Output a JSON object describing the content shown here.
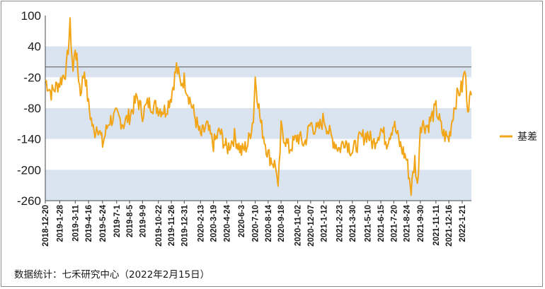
{
  "source_note": "数据统计：七禾研究中心（2022年2月15日）",
  "chart_data": {
    "type": "line",
    "title": "",
    "xlabel": "",
    "ylabel": "",
    "ylim": [
      -260,
      100
    ],
    "yticks": [
      100,
      40,
      -20,
      -80,
      -140,
      -200,
      -260
    ],
    "reference_line": 0,
    "grid": "alternating horizontal bands",
    "band_color": "#d9e4f0",
    "series_color": "#f2a516",
    "legend_position": "right",
    "x_tick_labels": [
      "2018-12-20",
      "2019-1-28",
      "2019-3-11",
      "2019-4-16",
      "2019-5-24",
      "2019-7-1",
      "2019-8-5",
      "2019-9-9",
      "2019-10-22",
      "2019-11-26",
      "2019-12-31",
      "2020-2-13",
      "2020-3-19",
      "2020-4-24",
      "2020-6-3",
      "2020-7-10",
      "2020-8-14",
      "2020-9-18",
      "2020-11-02",
      "2020-12-07",
      "2021-1-12",
      "2021-2-23",
      "2021-3-30",
      "2021-5-10",
      "2021-6-15",
      "2021-7-20",
      "2021-8-24",
      "2021-9-30",
      "2021-11-11",
      "2021-12-16",
      "2022-1-21"
    ],
    "series": [
      {
        "name": "基差",
        "keypoints": [
          {
            "x": "2018-12-20",
            "y": -25
          },
          {
            "x": "2019-1-05",
            "y": -50
          },
          {
            "x": "2019-1-28",
            "y": -30
          },
          {
            "x": "2019-2-15",
            "y": -5
          },
          {
            "x": "2019-2-25",
            "y": 80
          },
          {
            "x": "2019-3-05",
            "y": -10
          },
          {
            "x": "2019-3-11",
            "y": 40
          },
          {
            "x": "2019-3-25",
            "y": -50
          },
          {
            "x": "2019-4-05",
            "y": -5
          },
          {
            "x": "2019-4-16",
            "y": -75
          },
          {
            "x": "2019-5-01",
            "y": -130
          },
          {
            "x": "2019-5-10",
            "y": -110
          },
          {
            "x": "2019-5-24",
            "y": -150
          },
          {
            "x": "2019-6-10",
            "y": -105
          },
          {
            "x": "2019-7-1",
            "y": -95
          },
          {
            "x": "2019-7-20",
            "y": -110
          },
          {
            "x": "2019-8-5",
            "y": -95
          },
          {
            "x": "2019-8-25",
            "y": -60
          },
          {
            "x": "2019-9-9",
            "y": -90
          },
          {
            "x": "2019-9-25",
            "y": -70
          },
          {
            "x": "2019-10-22",
            "y": -80
          },
          {
            "x": "2019-11-10",
            "y": -85
          },
          {
            "x": "2019-11-26",
            "y": -55
          },
          {
            "x": "2019-12-10",
            "y": 0
          },
          {
            "x": "2019-12-20",
            "y": -30
          },
          {
            "x": "2019-12-31",
            "y": -25
          },
          {
            "x": "2020-1-20",
            "y": -75
          },
          {
            "x": "2020-2-13",
            "y": -135
          },
          {
            "x": "2020-3-01",
            "y": -115
          },
          {
            "x": "2020-3-19",
            "y": -150
          },
          {
            "x": "2020-4-05",
            "y": -125
          },
          {
            "x": "2020-4-24",
            "y": -160
          },
          {
            "x": "2020-5-15",
            "y": -135
          },
          {
            "x": "2020-6-3",
            "y": -165
          },
          {
            "x": "2020-6-20",
            "y": -150
          },
          {
            "x": "2020-7-05",
            "y": -100
          },
          {
            "x": "2020-7-10",
            "y": -20
          },
          {
            "x": "2020-7-25",
            "y": -110
          },
          {
            "x": "2020-8-14",
            "y": -170
          },
          {
            "x": "2020-9-05",
            "y": -195
          },
          {
            "x": "2020-9-10",
            "y": -245
          },
          {
            "x": "2020-9-18",
            "y": -120
          },
          {
            "x": "2020-10-10",
            "y": -160
          },
          {
            "x": "2020-11-02",
            "y": -135
          },
          {
            "x": "2020-11-20",
            "y": -150
          },
          {
            "x": "2020-12-07",
            "y": -110
          },
          {
            "x": "2020-12-25",
            "y": -125
          },
          {
            "x": "2021-1-12",
            "y": -100
          },
          {
            "x": "2021-1-30",
            "y": -135
          },
          {
            "x": "2021-2-23",
            "y": -160
          },
          {
            "x": "2021-3-10",
            "y": -140
          },
          {
            "x": "2021-3-30",
            "y": -165
          },
          {
            "x": "2021-4-20",
            "y": -140
          },
          {
            "x": "2021-5-10",
            "y": -130
          },
          {
            "x": "2021-5-25",
            "y": -150
          },
          {
            "x": "2021-6-15",
            "y": -120
          },
          {
            "x": "2021-7-01",
            "y": -145
          },
          {
            "x": "2021-7-20",
            "y": -110
          },
          {
            "x": "2021-8-05",
            "y": -150
          },
          {
            "x": "2021-8-24",
            "y": -180
          },
          {
            "x": "2021-9-05",
            "y": -240
          },
          {
            "x": "2021-9-15",
            "y": -180
          },
          {
            "x": "2021-9-22",
            "y": -235
          },
          {
            "x": "2021-9-30",
            "y": -110
          },
          {
            "x": "2021-10-20",
            "y": -115
          },
          {
            "x": "2021-11-11",
            "y": -80
          },
          {
            "x": "2021-11-30",
            "y": -130
          },
          {
            "x": "2021-12-16",
            "y": -140
          },
          {
            "x": "2021-12-30",
            "y": -80
          },
          {
            "x": "2022-1-10",
            "y": -50
          },
          {
            "x": "2022-1-21",
            "y": -40
          },
          {
            "x": "2022-1-28",
            "y": -5
          },
          {
            "x": "2022-2-05",
            "y": -75
          },
          {
            "x": "2022-2-15",
            "y": -55
          }
        ]
      }
    ]
  }
}
